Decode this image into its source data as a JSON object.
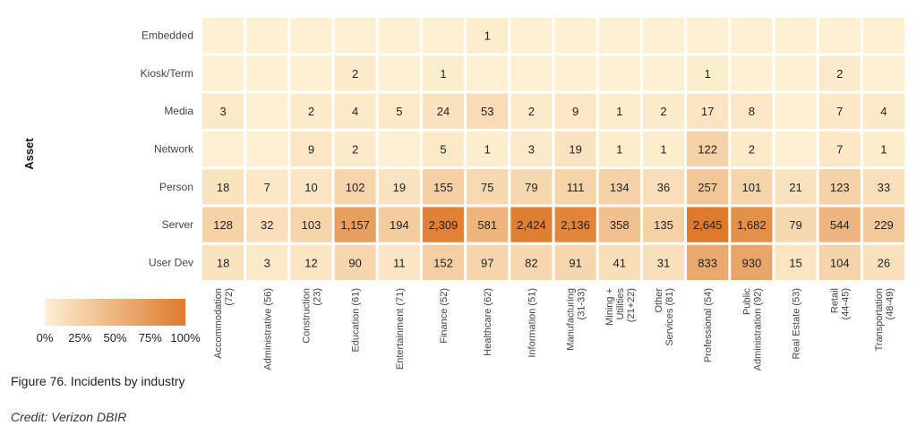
{
  "caption": "Figure 76. Incidents by industry",
  "credit": "Credit: Verizon DBIR",
  "chart_data": {
    "type": "heatmap",
    "ylabel": "Asset",
    "rows": [
      "Embedded",
      "Kiosk/Term",
      "Media",
      "Network",
      "Person",
      "Server",
      "User Dev"
    ],
    "columns": [
      [
        "Accommodation",
        "(72)"
      ],
      [
        "Administrative (56)"
      ],
      [
        "Construction",
        "(23)"
      ],
      [
        "Education (61)"
      ],
      [
        "Entertainment (71)"
      ],
      [
        "Finance (52)"
      ],
      [
        "Healthcare (62)"
      ],
      [
        "Information (51)"
      ],
      [
        "Manufacturing",
        "(31-33)"
      ],
      [
        "Mining +",
        "Utilities",
        "(21+22)"
      ],
      [
        "Other",
        "Services (81)"
      ],
      [
        "Professional (54)"
      ],
      [
        "Public",
        "Administration (92)"
      ],
      [
        "Real Estate (53)"
      ],
      [
        "Retail",
        "(44-45)"
      ],
      [
        "Transportation",
        "(48-49)"
      ]
    ],
    "values": [
      [
        null,
        null,
        null,
        null,
        null,
        null,
        1,
        null,
        null,
        null,
        null,
        null,
        null,
        null,
        null,
        null
      ],
      [
        null,
        null,
        null,
        2,
        null,
        1,
        null,
        null,
        null,
        null,
        null,
        1,
        null,
        null,
        2,
        null
      ],
      [
        3,
        null,
        2,
        4,
        5,
        24,
        53,
        2,
        9,
        1,
        2,
        17,
        8,
        null,
        7,
        4
      ],
      [
        null,
        null,
        9,
        2,
        null,
        5,
        1,
        3,
        19,
        1,
        1,
        122,
        2,
        null,
        7,
        1
      ],
      [
        18,
        7,
        10,
        102,
        19,
        155,
        75,
        79,
        111,
        134,
        36,
        257,
        101,
        21,
        123,
        33
      ],
      [
        128,
        32,
        103,
        1157,
        194,
        2309,
        581,
        2424,
        2136,
        358,
        135,
        2645,
        1682,
        79,
        544,
        229
      ],
      [
        18,
        3,
        12,
        90,
        11,
        152,
        97,
        82,
        91,
        41,
        31,
        833,
        930,
        15,
        104,
        26
      ]
    ],
    "labels": [
      [
        "",
        "",
        "",
        "",
        "",
        "",
        "1",
        "",
        "",
        "",
        "",
        "",
        "",
        "",
        "",
        ""
      ],
      [
        "",
        "",
        "",
        "2",
        "",
        "1",
        "",
        "",
        "",
        "",
        "",
        "1",
        "",
        "",
        "2",
        ""
      ],
      [
        "3",
        "",
        "2",
        "4",
        "5",
        "24",
        "53",
        "2",
        "9",
        "1",
        "2",
        "17",
        "8",
        "",
        "7",
        "4"
      ],
      [
        "",
        "",
        "9",
        "2",
        "",
        "5",
        "1",
        "3",
        "19",
        "1",
        "1",
        "122",
        "2",
        "",
        "7",
        "1"
      ],
      [
        "18",
        "7",
        "10",
        "102",
        "19",
        "155",
        "75",
        "79",
        "111",
        "134",
        "36",
        "257",
        "101",
        "21",
        "123",
        "33"
      ],
      [
        "128",
        "32",
        "103",
        "1,157",
        "194",
        "2,309",
        "581",
        "2,424",
        "2,136",
        "358",
        "135",
        "2,645",
        "1,682",
        "79",
        "544",
        "229"
      ],
      [
        "18",
        "3",
        "12",
        "90",
        "11",
        "152",
        "97",
        "82",
        "91",
        "41",
        "31",
        "833",
        "930",
        "15",
        "104",
        "26"
      ]
    ],
    "color_scale": {
      "low": "#fdf0d2",
      "high": "#dd7a2c",
      "ticks": [
        "0%",
        "25%",
        "50%",
        "75%",
        "100%"
      ]
    }
  }
}
